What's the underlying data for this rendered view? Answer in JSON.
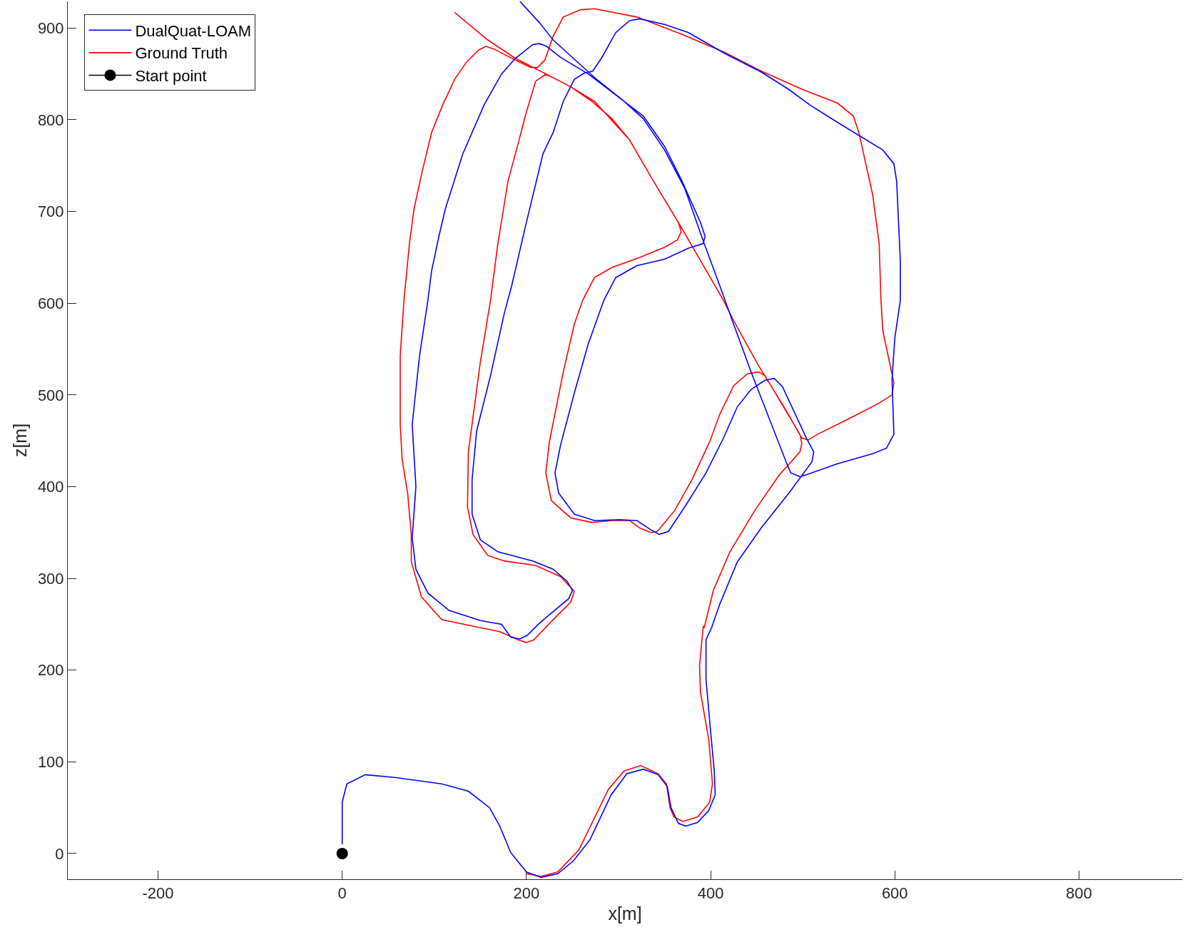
{
  "chart_data": {
    "type": "line",
    "xlabel": "x[m]",
    "ylabel": "z[m]",
    "xlim": [
      -298,
      912
    ],
    "ylim": [
      -28,
      929
    ],
    "xticks": [
      -200,
      0,
      200,
      400,
      600,
      800
    ],
    "yticks": [
      0,
      100,
      200,
      300,
      400,
      500,
      600,
      700,
      800,
      900
    ],
    "legend": "top left",
    "line_style": "solid",
    "series": [
      {
        "name": "DualQuat-LOAM",
        "color": "#0000ff",
        "marker": "none",
        "x": [
          0,
          0,
          5,
          25,
          57,
          108,
          137,
          160,
          171,
          183,
          200,
          216,
          234,
          251,
          269,
          292,
          309,
          327,
          343,
          353,
          357,
          365,
          373,
          386,
          398,
          405,
          404,
          400,
          395,
          395,
          401,
          410,
          429,
          455,
          485,
          510,
          512,
          504,
          478,
          469,
          459,
          444,
          429,
          414,
          395,
          372,
          354,
          344,
          335,
          320,
          301,
          274,
          252,
          235,
          231,
          237,
          252,
          267,
          284,
          297,
          320,
          350,
          376,
          392,
          394,
          389,
          369,
          350,
          327,
          297,
          267,
          237,
          222,
          214,
          207,
          188,
          173,
          154,
          131,
          112,
          105,
          97,
          93,
          84,
          76,
          80,
          76,
          80,
          93,
          116,
          150,
          173,
          183,
          193,
          201,
          214,
          227,
          246,
          250,
          244,
          229,
          207,
          169,
          150,
          141,
          141,
          146,
          161,
          176,
          184,
          199,
          218,
          229,
          240,
          252,
          263,
          272,
          282,
          297,
          312,
          323,
          350,
          376,
          414,
          455,
          485,
          508,
          538,
          587,
          599,
          602,
          606,
          606,
          600,
          597,
          599,
          591,
          576,
          538,
          504,
          497,
          487,
          482,
          444,
          425,
          410,
          393,
          372,
          350,
          327,
          305,
          274,
          229,
          214,
          193
        ],
        "values": [
          10,
          56,
          76,
          86,
          83,
          76,
          68,
          50,
          30,
          1,
          -20,
          -26,
          -22,
          -8,
          15,
          64,
          87,
          92,
          86,
          73,
          50,
          33,
          30,
          34,
          47,
          64,
          90,
          133,
          190,
          233,
          246,
          272,
          318,
          355,
          393,
          427,
          438,
          453,
          509,
          518,
          516,
          506,
          487,
          453,
          415,
          378,
          351,
          348,
          353,
          363,
          364,
          363,
          370,
          393,
          415,
          445,
          502,
          555,
          603,
          628,
          641,
          648,
          660,
          665,
          673,
          688,
          733,
          771,
          804,
          827,
          850,
          868,
          880,
          883,
          882,
          867,
          850,
          816,
          763,
          703,
          673,
          635,
          603,
          543,
          468,
          400,
          344,
          310,
          284,
          265,
          254,
          250,
          236,
          234,
          238,
          251,
          262,
          278,
          287,
          297,
          310,
          319,
          329,
          342,
          370,
          408,
          461,
          521,
          589,
          619,
          684,
          763,
          786,
          820,
          844,
          851,
          853,
          868,
          895,
          908,
          910,
          904,
          895,
          873,
          852,
          833,
          816,
          797,
          767,
          752,
          733,
          646,
          603,
          562,
          517,
          457,
          442,
          436,
          425,
          413,
          411,
          415,
          427,
          525,
          577,
          619,
          665,
          725,
          767,
          801,
          821,
          846,
          887,
          906,
          929
        ]
      },
      {
        "name": "Ground Truth",
        "color": "#ff0000",
        "marker": "none",
        "x": [
          200,
          216,
          234,
          257,
          289,
          306,
          324,
          343,
          352,
          356,
          360,
          370,
          386,
          399,
          402,
          398,
          389,
          388,
          392,
          393,
          403,
          421,
          448,
          474,
          497,
          499,
          497,
          459,
          452,
          440,
          425,
          410,
          399,
          380,
          361,
          342,
          335,
          323,
          312,
          293,
          271,
          248,
          227,
          221,
          225,
          240,
          252,
          261,
          274,
          293,
          323,
          350,
          364,
          368,
          365,
          338,
          312,
          293,
          271,
          248,
          225,
          220,
          210,
          199,
          191,
          180,
          169,
          161,
          150,
          137,
          136,
          142,
          158,
          176,
          210,
          237,
          252,
          248,
          231,
          208,
          200,
          191,
          171,
          137,
          108,
          86,
          75,
          75,
          71,
          65,
          63,
          63,
          67,
          73,
          78,
          86,
          97,
          109,
          122,
          135,
          148,
          156,
          165,
          188,
          205,
          212,
          220,
          229,
          240,
          259,
          274,
          320,
          369,
          414,
          455,
          500,
          538,
          555,
          561,
          576,
          583,
          585,
          587,
          599,
          597,
          583,
          550,
          516,
          506,
          499,
          482,
          452,
          425,
          414,
          387,
          365,
          338,
          312,
          274,
          248,
          225,
          188,
          158,
          122
        ],
        "values": [
          -22,
          -25,
          -20,
          4,
          70,
          90,
          96,
          87,
          76,
          50,
          40,
          35,
          40,
          56,
          76,
          124,
          176,
          205,
          248,
          246,
          287,
          329,
          374,
          412,
          438,
          447,
          457,
          521,
          525,
          523,
          510,
          479,
          449,
          408,
          374,
          351,
          350,
          355,
          363,
          363,
          361,
          366,
          385,
          415,
          449,
          525,
          577,
          603,
          628,
          639,
          650,
          661,
          669,
          678,
          688,
          733,
          778,
          801,
          820,
          836,
          848,
          849,
          842,
          805,
          774,
          733,
          665,
          603,
          536,
          438,
          378,
          348,
          325,
          319,
          314,
          302,
          286,
          274,
          257,
          233,
          230,
          233,
          242,
          249,
          255,
          280,
          318,
          348,
          393,
          430,
          468,
          543,
          603,
          665,
          703,
          740,
          786,
          816,
          844,
          863,
          876,
          880,
          877,
          865,
          857,
          857,
          865,
          891,
          912,
          920,
          921,
          912,
          893,
          874,
          853,
          833,
          818,
          804,
          786,
          718,
          665,
          603,
          570,
          513,
          500,
          491,
          474,
          457,
          451,
          453,
          483,
          532,
          581,
          603,
          650,
          688,
          733,
          778,
          820,
          836,
          848,
          867,
          887,
          917
        ]
      },
      {
        "name": "Start point",
        "type": "scatter",
        "color": "#000000",
        "marker": "circle",
        "x": [
          0
        ],
        "values": [
          0
        ]
      }
    ]
  }
}
